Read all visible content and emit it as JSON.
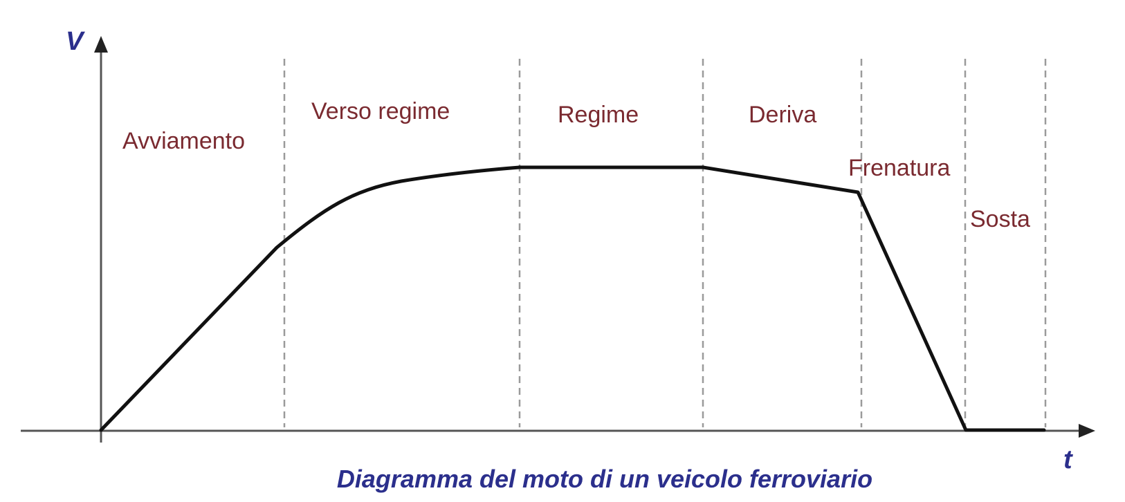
{
  "axes": {
    "y_label": "V",
    "x_label": "t"
  },
  "phases": [
    {
      "id": "avviamento",
      "label": "Avviamento"
    },
    {
      "id": "verso-regime",
      "label": "Verso regime"
    },
    {
      "id": "regime",
      "label": "Regime"
    },
    {
      "id": "deriva",
      "label": "Deriva"
    },
    {
      "id": "frenatura",
      "label": "Frenatura"
    },
    {
      "id": "sosta",
      "label": "Sosta"
    }
  ],
  "caption": "Diagramma del moto di un veicolo ferroviario",
  "colors": {
    "phase_text": "#7a2a30",
    "axis_text": "#2b2f8c",
    "curve": "#111111",
    "divider": "#9a9a9a"
  }
}
